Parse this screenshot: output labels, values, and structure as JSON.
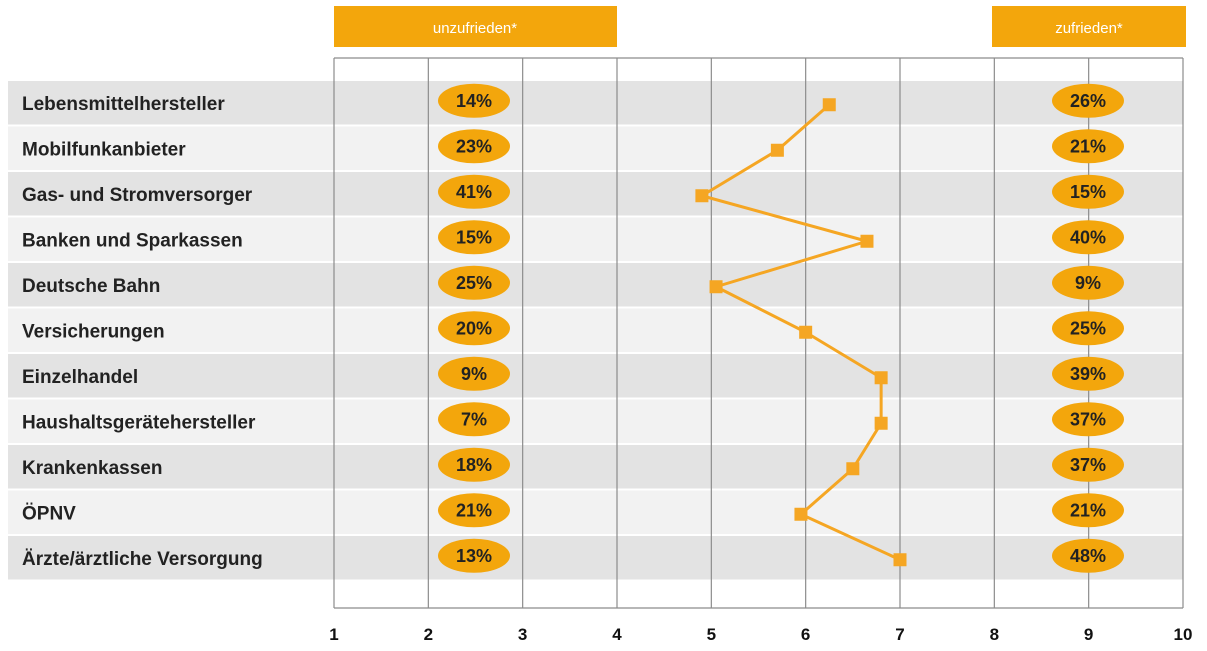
{
  "headers": {
    "left": "unzufrieden*",
    "right": "zufrieden*"
  },
  "colors": {
    "accent": "#f3a60c",
    "line": "#f5a623",
    "row_dark": "#e3e3e3",
    "row_light": "#f2f2f2",
    "grid": "#8c8c8c"
  },
  "chart_data": {
    "type": "line",
    "categories": [
      "Lebensmittelhersteller",
      "Mobilfunkanbieter",
      "Gas- und Stromversorger",
      "Banken und Sparkassen",
      "Deutsche Bahn",
      "Versicherungen",
      "Einzelhandel",
      "Haushaltsgerätehersteller",
      "Krankenkassen",
      "ÖPNV",
      "Ärzte/ärztliche Versorgung"
    ],
    "values": [
      6.25,
      5.7,
      4.9,
      6.65,
      5.05,
      6.0,
      6.8,
      6.8,
      6.5,
      5.95,
      7.0
    ],
    "unzufrieden": [
      "14%",
      "23%",
      "41%",
      "15%",
      "25%",
      "20%",
      "9%",
      "7%",
      "18%",
      "21%",
      "13%"
    ],
    "zufrieden": [
      "26%",
      "21%",
      "15%",
      "40%",
      "9%",
      "25%",
      "39%",
      "37%",
      "37%",
      "21%",
      "48%"
    ],
    "xlim": [
      1,
      10
    ],
    "xticks": [
      "1",
      "2",
      "3",
      "4",
      "5",
      "6",
      "7",
      "8",
      "9",
      "10"
    ],
    "title": "",
    "xlabel": "",
    "ylabel": ""
  }
}
